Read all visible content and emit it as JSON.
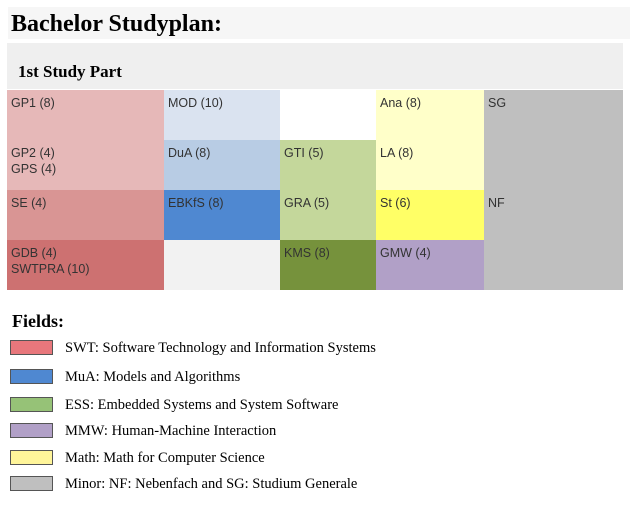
{
  "page": {
    "title": "Bachelor Studyplan:"
  },
  "study_part": {
    "title": "1st Study Part"
  },
  "colors": {
    "swt_light": "#e6b8b8",
    "swt_mid": "#d99594",
    "swt_dark": "#cd7171",
    "mua_light": "#dae3f0",
    "mua_mid": "#b8cce4",
    "mua_dark": "#4f88d1",
    "ess_light": "#c4d79b",
    "ess_dark": "#76923c",
    "mmw": "#b1a0c7",
    "math_light": "#ffffc9",
    "math_dark": "#ffff66",
    "minor": "#bfbfbf",
    "empty": "#ffffff",
    "empty_gray": "#f2f2f2"
  },
  "grid": {
    "gp1": [
      "GP1 (8)"
    ],
    "mod": [
      "MOD (10)"
    ],
    "ana": [
      "Ana (8)"
    ],
    "sg": [
      "SG"
    ],
    "gp2": [
      "GP2 (4)",
      "GPS (4)"
    ],
    "dua": [
      "DuA (8)"
    ],
    "gti": [
      "GTI (5)"
    ],
    "la": [
      "LA (8)"
    ],
    "se": [
      "SE (4)"
    ],
    "ebkfs": [
      "EBKfS (8)"
    ],
    "gra": [
      "GRA (5)"
    ],
    "st": [
      "St (6)"
    ],
    "nf": [
      "NF"
    ],
    "gdb": [
      "GDB (4)",
      "SWTPRA (10)"
    ],
    "kms": [
      "KMS (8)"
    ],
    "gmw": [
      "GMW (4)"
    ]
  },
  "fields": {
    "title": "Fields:",
    "items": [
      {
        "label": "SWT: Software Technology and Information Systems",
        "color": "#e8777c"
      },
      {
        "label": "MuA: Models and Algorithms",
        "color": "#4f88d1"
      },
      {
        "label": "ESS: Embedded Systems and System Software",
        "color": "#96c277"
      },
      {
        "label": "MMW: Human-Machine Interaction",
        "color": "#b1a0c7"
      },
      {
        "label": "Math: Math for Computer Science",
        "color": "#fff59a"
      },
      {
        "label": "Minor: NF: Nebenfach and SG: Studium Generale",
        "color": "#bfbfbf"
      }
    ]
  }
}
